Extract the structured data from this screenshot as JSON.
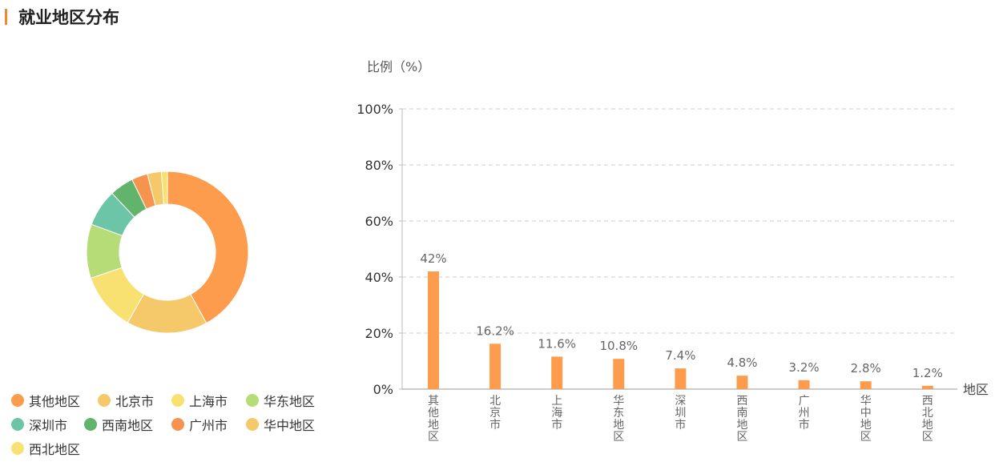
{
  "header": {
    "title": "就业地区分布"
  },
  "legend": {
    "items": [
      {
        "label": "其他地区",
        "color": "#fc9c4c"
      },
      {
        "label": "北京市",
        "color": "#f5c96a"
      },
      {
        "label": "上海市",
        "color": "#f8e071"
      },
      {
        "label": "华东地区",
        "color": "#b6dc78"
      },
      {
        "label": "深圳市",
        "color": "#6cc5a6"
      },
      {
        "label": "西南地区",
        "color": "#62b36b"
      },
      {
        "label": "广州市",
        "color": "#f5944e"
      },
      {
        "label": "华中地区",
        "color": "#f5c96a"
      },
      {
        "label": "西北地区",
        "color": "#f8e071"
      }
    ]
  },
  "chart_data": [
    {
      "type": "pie",
      "style": "donut",
      "categories": [
        "其他地区",
        "北京市",
        "上海市",
        "华东地区",
        "深圳市",
        "西南地区",
        "广州市",
        "华中地区",
        "西北地区"
      ],
      "values": [
        42,
        16.2,
        11.6,
        10.8,
        7.4,
        4.8,
        3.2,
        2.8,
        1.2
      ],
      "colors": [
        "#fc9c4c",
        "#f5c96a",
        "#f8e071",
        "#b6dc78",
        "#6cc5a6",
        "#62b36b",
        "#f5944e",
        "#f5c96a",
        "#f8e071"
      ],
      "legend_position": "bottom-left"
    },
    {
      "type": "bar",
      "categories": [
        "其他地区",
        "北京市",
        "上海市",
        "华东地区",
        "深圳市",
        "西南地区",
        "广州市",
        "华中地区",
        "西北地区"
      ],
      "values": [
        42,
        16.2,
        11.6,
        10.8,
        7.4,
        4.8,
        3.2,
        2.8,
        1.2
      ],
      "data_labels": [
        "42%",
        "16.2%",
        "11.6%",
        "10.8%",
        "7.4%",
        "4.8%",
        "3.2%",
        "2.8%",
        "1.2%"
      ],
      "ylabel": "比例（%）",
      "xlabel": "地区",
      "ylim": [
        0,
        100
      ],
      "yticks": [
        "0%",
        "20%",
        "40%",
        "60%",
        "80%",
        "100%"
      ],
      "grid": "horizontal-dashed",
      "bar_color": "#fc9c4c"
    }
  ]
}
